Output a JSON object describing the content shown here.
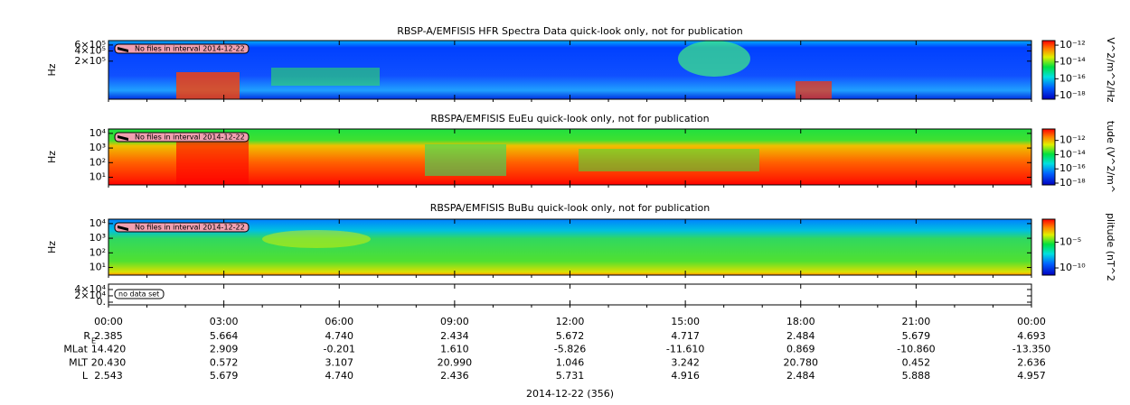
{
  "chart_data": [
    {
      "type": "spectrogram",
      "title": "RBSP-A/EMFISIS  HFR Spectra Data quick-look only, not for publication",
      "ylabel": "Hz",
      "log_y": true,
      "ylim": [
        15000,
        810000
      ],
      "yticks": [
        {
          "value": 600000,
          "label": "6×10⁵"
        },
        {
          "value": 400000,
          "label": "4×10⁵"
        },
        {
          "value": 200000,
          "label": "2×10⁵"
        }
      ],
      "note": "No files in interval 2014-12-22",
      "colorbar": {
        "label": "V^2/m^2/Hz",
        "log": true,
        "lim": [
          3.7e-19,
          3.5e-12
        ],
        "ticks": [
          {
            "value": 1e-12,
            "label": "10⁻¹²"
          },
          {
            "value": 1e-14,
            "label": "10⁻¹⁴"
          },
          {
            "value": 1e-16,
            "label": "10⁻¹⁶"
          },
          {
            "value": 1e-18,
            "label": "10⁻¹⁸"
          }
        ]
      }
    },
    {
      "type": "spectrogram",
      "title": "RBSPA/EMFISIS  EuEu quick-look only, not for publication",
      "ylabel": "Hz",
      "log_y": true,
      "ylim": [
        3,
        20000
      ],
      "yticks": [
        {
          "value": 10000,
          "label": "10⁴"
        },
        {
          "value": 1000,
          "label": "10³"
        },
        {
          "value": 100,
          "label": "10²"
        },
        {
          "value": 10,
          "label": "10¹"
        }
      ],
      "note": "No files in interval 2014-12-22",
      "colorbar": {
        "label": "tude (V^2/m^",
        "log": true,
        "lim": [
          5.6e-19,
          4e-11
        ],
        "ticks": [
          {
            "value": 1e-12,
            "label": "10⁻¹²"
          },
          {
            "value": 1e-14,
            "label": "10⁻¹⁴"
          },
          {
            "value": 1e-16,
            "label": "10⁻¹⁶"
          },
          {
            "value": 1e-18,
            "label": "10⁻¹⁸"
          }
        ]
      }
    },
    {
      "type": "spectrogram",
      "title": "RBSPA/EMFISIS  BuBu quick-look only, not for publication",
      "ylabel": "Hz",
      "log_y": true,
      "ylim": [
        3,
        20000
      ],
      "yticks": [
        {
          "value": 10000,
          "label": "10⁴"
        },
        {
          "value": 1000,
          "label": "10³"
        },
        {
          "value": 100,
          "label": "10²"
        },
        {
          "value": 10,
          "label": "10¹"
        }
      ],
      "note": "No files in interval 2014-12-22",
      "colorbar": {
        "label": "plitude (nT^2",
        "log": true,
        "lim": [
          4e-12,
          0.3
        ],
        "ticks": [
          {
            "value": 1e-05,
            "label": "10⁻⁵"
          },
          {
            "value": 1e-10,
            "label": "10⁻¹⁰"
          }
        ]
      }
    },
    {
      "type": "empty",
      "log_y": false,
      "ylim": [
        -8600,
        57000
      ],
      "yticks": [
        {
          "value": 40000,
          "label": "4×10⁴"
        },
        {
          "value": 20000,
          "label": "2×10⁴"
        },
        {
          "value": 0,
          "label": "0."
        }
      ],
      "note": "no data set"
    }
  ],
  "x_axis": {
    "xlim": [
      0,
      24
    ],
    "xticks": [
      {
        "value": 0,
        "label": "00:00"
      },
      {
        "value": 3,
        "label": "03:00"
      },
      {
        "value": 6,
        "label": "06:00"
      },
      {
        "value": 9,
        "label": "09:00"
      },
      {
        "value": 12,
        "label": "12:00"
      },
      {
        "value": 15,
        "label": "15:00"
      },
      {
        "value": 18,
        "label": "18:00"
      },
      {
        "value": 21,
        "label": "21:00"
      },
      {
        "value": 24,
        "label": "00:00"
      }
    ],
    "xlabel": "2014-12-22 (356)"
  },
  "ephemeris": [
    {
      "label": "R",
      "subscript": "E",
      "values": [
        "2.385",
        "5.664",
        "4.740",
        "2.434",
        "5.672",
        "4.717",
        "2.484",
        "5.679",
        "4.693"
      ]
    },
    {
      "label": "MLat",
      "values": [
        "14.420",
        "2.909",
        "-0.201",
        "1.610",
        "-5.826",
        "-11.610",
        "0.869",
        "-10.860",
        "-13.350"
      ]
    },
    {
      "label": "MLT",
      "values": [
        "20.430",
        "0.572",
        "3.107",
        "20.990",
        "1.046",
        "3.242",
        "20.780",
        "0.452",
        "2.636"
      ]
    },
    {
      "label": "L",
      "values": [
        "2.543",
        "5.679",
        "4.740",
        "2.436",
        "5.731",
        "4.916",
        "2.484",
        "5.888",
        "4.957"
      ]
    }
  ]
}
